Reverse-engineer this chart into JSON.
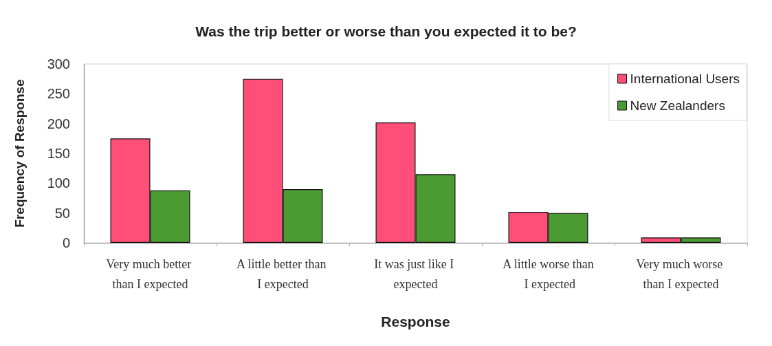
{
  "chart_data": {
    "type": "bar",
    "title": "Was the trip better or worse than you expected it to be?",
    "xlabel": "Response",
    "ylabel": "Frequency of Response",
    "categories": [
      "Very much better than I expected",
      "A little better than I expected",
      "It was just like I expected",
      "A little worse than I expected",
      "Very much worse than I expected"
    ],
    "series": [
      {
        "name": "International Users",
        "color": "#ff4f79",
        "values": [
          175,
          275,
          202,
          52,
          9
        ]
      },
      {
        "name": "New Zealanders",
        "color": "#4b9a32",
        "values": [
          88,
          90,
          115,
          50,
          9
        ]
      }
    ],
    "ylim": [
      0,
      300
    ],
    "yticks": [
      0,
      50,
      100,
      150,
      200,
      250,
      300
    ],
    "grid": false,
    "legend": "top right"
  }
}
